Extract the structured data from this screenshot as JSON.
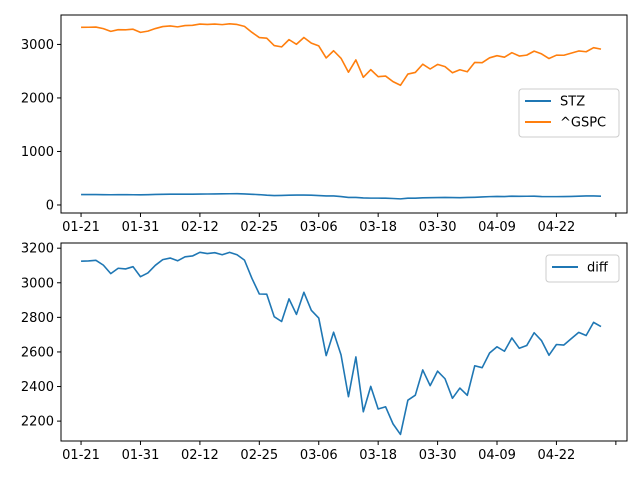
{
  "chart_data": [
    {
      "type": "line",
      "x": [
        "01-21",
        "01-22",
        "01-23",
        "01-24",
        "01-27",
        "01-28",
        "01-29",
        "01-30",
        "01-31",
        "02-03",
        "02-04",
        "02-05",
        "02-06",
        "02-07",
        "02-10",
        "02-11",
        "02-12",
        "02-13",
        "02-14",
        "02-18",
        "02-19",
        "02-20",
        "02-21",
        "02-24",
        "02-25",
        "02-26",
        "02-27",
        "02-28",
        "03-02",
        "03-03",
        "03-04",
        "03-05",
        "03-06",
        "03-09",
        "03-10",
        "03-11",
        "03-12",
        "03-13",
        "03-16",
        "03-17",
        "03-18",
        "03-19",
        "03-20",
        "03-23",
        "03-24",
        "03-25",
        "03-26",
        "03-27",
        "03-30",
        "03-31",
        "04-01",
        "04-02",
        "04-03",
        "04-06",
        "04-07",
        "04-08",
        "04-09",
        "04-13",
        "04-14",
        "04-15",
        "04-16",
        "04-17",
        "04-20",
        "04-21",
        "04-22",
        "04-23",
        "04-24",
        "04-27",
        "04-28",
        "04-29",
        "04-30"
      ],
      "series": [
        {
          "name": "STZ",
          "values": [
            195,
            195,
            195,
            193,
            191,
            192,
            193,
            191,
            190,
            192,
            196,
            200,
            202,
            201,
            202,
            202,
            204,
            205,
            206,
            208,
            210,
            211,
            206,
            200,
            193,
            182,
            175,
            178,
            183,
            186,
            185,
            183,
            176,
            168,
            168,
            158,
            140,
            140,
            132,
            128,
            128,
            126,
            121,
            114,
            126,
            126,
            134,
            136,
            138,
            140,
            138,
            136,
            140,
            144,
            150,
            156,
            160,
            158,
            165,
            162,
            163,
            164,
            158,
            156,
            156,
            158,
            160,
            165,
            168,
            168,
            165
          ],
          "color": "#1f77b4"
        },
        {
          "name": "^GSPC",
          "values": [
            3320,
            3321,
            3325,
            3295,
            3244,
            3276,
            3273,
            3284,
            3225,
            3249,
            3297,
            3334,
            3345,
            3328,
            3352,
            3357,
            3380,
            3374,
            3380,
            3370,
            3386,
            3373,
            3337,
            3226,
            3128,
            3116,
            2979,
            2954,
            3090,
            3003,
            3130,
            3024,
            2972,
            2747,
            2882,
            2741,
            2481,
            2711,
            2386,
            2529,
            2398,
            2409,
            2305,
            2237,
            2447,
            2476,
            2630,
            2541,
            2627,
            2585,
            2470,
            2527,
            2489,
            2664,
            2659,
            2750,
            2790,
            2762,
            2846,
            2783,
            2800,
            2875,
            2823,
            2737,
            2799,
            2798,
            2837,
            2878,
            2863,
            2939,
            2912
          ],
          "color": "#ff7f0e"
        }
      ],
      "xticks": [
        "01-21",
        "01-31",
        "02-12",
        "02-25",
        "03-06",
        "03-18",
        "03-30",
        "04-09",
        "04-22",
        ""
      ],
      "yticks": [
        0,
        1000,
        2000,
        3000
      ],
      "ylim": [
        -150,
        3550
      ],
      "grid": false,
      "legend_position": "center-right"
    },
    {
      "type": "line",
      "x": [
        "01-21",
        "01-22",
        "01-23",
        "01-24",
        "01-27",
        "01-28",
        "01-29",
        "01-30",
        "01-31",
        "02-03",
        "02-04",
        "02-05",
        "02-06",
        "02-07",
        "02-10",
        "02-11",
        "02-12",
        "02-13",
        "02-14",
        "02-18",
        "02-19",
        "02-20",
        "02-21",
        "02-24",
        "02-25",
        "02-26",
        "02-27",
        "02-28",
        "03-02",
        "03-03",
        "03-04",
        "03-05",
        "03-06",
        "03-09",
        "03-10",
        "03-11",
        "03-12",
        "03-13",
        "03-16",
        "03-17",
        "03-18",
        "03-19",
        "03-20",
        "03-23",
        "03-24",
        "03-25",
        "03-26",
        "03-27",
        "03-30",
        "03-31",
        "04-01",
        "04-02",
        "04-03",
        "04-06",
        "04-07",
        "04-08",
        "04-09",
        "04-13",
        "04-14",
        "04-15",
        "04-16",
        "04-17",
        "04-20",
        "04-21",
        "04-22",
        "04-23",
        "04-24",
        "04-27",
        "04-28",
        "04-29",
        "04-30"
      ],
      "series": [
        {
          "name": "diff",
          "values": [
            3125,
            3126,
            3130,
            3102,
            3053,
            3084,
            3080,
            3093,
            3035,
            3057,
            3101,
            3134,
            3143,
            3127,
            3150,
            3155,
            3176,
            3169,
            3174,
            3162,
            3176,
            3162,
            3131,
            3026,
            2935,
            2934,
            2804,
            2776,
            2907,
            2817,
            2945,
            2841,
            2796,
            2579,
            2714,
            2583,
            2341,
            2571,
            2254,
            2401,
            2270,
            2283,
            2184,
            2123,
            2321,
            2350,
            2496,
            2405,
            2489,
            2445,
            2332,
            2391,
            2349,
            2520,
            2509,
            2594,
            2630,
            2604,
            2681,
            2621,
            2637,
            2711,
            2665,
            2581,
            2643,
            2640,
            2677,
            2713,
            2695,
            2771,
            2747
          ],
          "color": "#1f77b4"
        }
      ],
      "xticks": [
        "01-21",
        "01-31",
        "02-12",
        "02-25",
        "03-06",
        "03-18",
        "03-30",
        "04-09",
        "04-22",
        ""
      ],
      "yticks": [
        2200,
        2400,
        2600,
        2800,
        3000,
        3200
      ],
      "ylim": [
        2085,
        3230
      ],
      "grid": false,
      "legend_position": "top-right"
    }
  ]
}
